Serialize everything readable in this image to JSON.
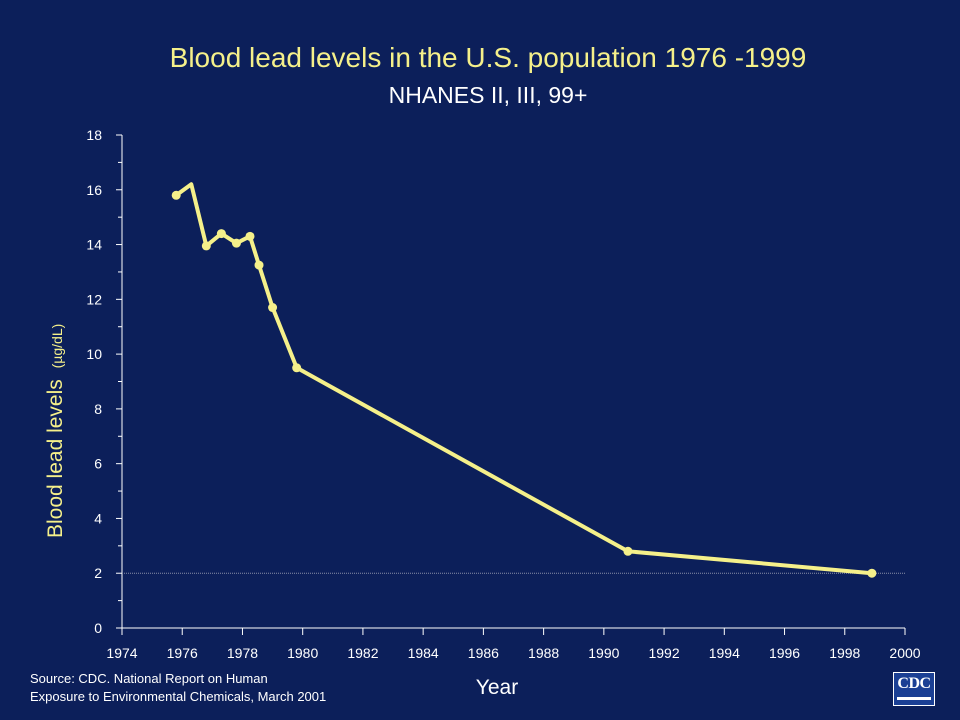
{
  "slide": {
    "title": "Blood lead levels in the U.S. population 1976 -1999",
    "subtitle": "NHANES II, III, 99+",
    "source_line1": "Source:  CDC. National Report on Human",
    "source_line2": "Exposure to Environmental Chemicals, March 2001",
    "logo_text": "CDC",
    "logo_icon": "cdc-logo-icon"
  },
  "colors": {
    "background": "#0c1f5a",
    "line": "#f5f08a",
    "title": "#f5f08a",
    "text": "#ffffff",
    "reference_line": "#8a8fa8"
  },
  "chart_data": {
    "type": "line",
    "title": "Blood lead levels in the U.S. population 1976 -1999",
    "subtitle": "NHANES II, III, 99+",
    "xlabel": "Year",
    "ylabel": "Blood lead levels",
    "ylabel_unit": "(µg/dL)",
    "xlim": [
      1974,
      2000
    ],
    "ylim": [
      0,
      18
    ],
    "xticks": [
      "1974",
      "1976",
      "1978",
      "1980",
      "1982",
      "1984",
      "1986",
      "1988",
      "1990",
      "1992",
      "1994",
      "1996",
      "1998",
      "2000"
    ],
    "yticks": [
      "0",
      "2",
      "4",
      "6",
      "8",
      "10",
      "12",
      "14",
      "16",
      "18"
    ],
    "grid": false,
    "reference_line_y": 2,
    "series": [
      {
        "x": [
          1975.8,
          1976.3,
          1976.8,
          1977.3,
          1977.8,
          1978.25,
          1978.55,
          1979.0,
          1979.8,
          1990.8,
          1998.9
        ],
        "y": [
          15.8,
          16.2,
          13.95,
          14.4,
          14.05,
          14.3,
          13.25,
          11.7,
          9.5,
          2.8,
          2.0
        ],
        "markers": [
          true,
          false,
          true,
          true,
          true,
          true,
          true,
          true,
          true,
          true,
          true
        ]
      }
    ]
  }
}
